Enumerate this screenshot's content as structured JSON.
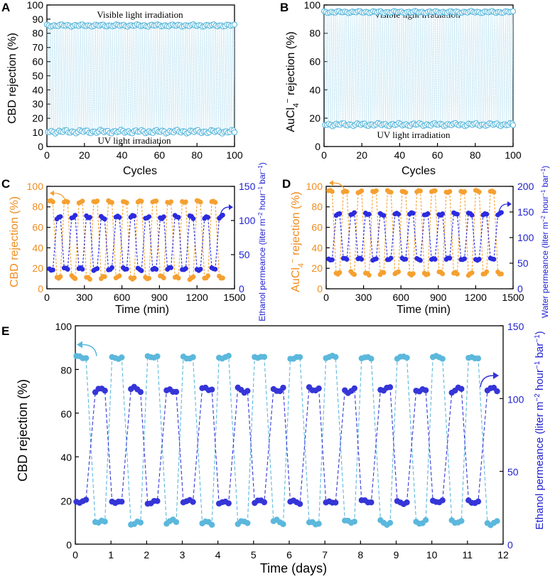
{
  "chart_data": [
    {
      "panel": "A",
      "type": "scatter",
      "xlabel": "Cycles",
      "ylabel": "CBD rejection (%)",
      "xlim": [
        0,
        100
      ],
      "ylim": [
        0,
        100
      ],
      "xticks": [
        "0",
        "20",
        "40",
        "60",
        "80",
        "100"
      ],
      "yticks": [
        "0",
        "10",
        "20",
        "30",
        "40",
        "50",
        "60",
        "70",
        "80",
        "90",
        "100"
      ],
      "annotations": [
        "Visible light irradiation",
        "UV light irradiation"
      ],
      "series": [
        {
          "label": "Visible light irradiation",
          "level": 85.5,
          "amplitude": 0.9,
          "color": "#5bb8dc"
        },
        {
          "label": "UV light irradiation",
          "level": 10.5,
          "amplitude": 1.4,
          "color": "#5bb8dc"
        }
      ],
      "grid": false
    },
    {
      "panel": "B",
      "type": "scatter",
      "xlabel": "Cycles",
      "ylabel_parts": [
        "AuCl",
        "4",
        "−",
        " rejection (%)"
      ],
      "xlim": [
        0,
        100
      ],
      "ylim": [
        0,
        100
      ],
      "xticks": [
        "0",
        "20",
        "40",
        "60",
        "80",
        "100"
      ],
      "yticks": [
        "0",
        "20",
        "40",
        "60",
        "80",
        "100"
      ],
      "annotations": [
        "Visible light irradiation",
        "UV light irradiation"
      ],
      "series": [
        {
          "label": "Visible light irradiation",
          "level": 95,
          "amplitude": 0.8,
          "color": "#5bb8dc"
        },
        {
          "label": "UV light irradiation",
          "level": 15.5,
          "amplitude": 1.2,
          "color": "#5bb8dc"
        }
      ],
      "grid": false
    },
    {
      "panel": "C",
      "type": "line",
      "xlabel": "Time (min)",
      "ylabel": "CBD rejection (%)",
      "ylabel_right": "Ethanol permeance (liter m",
      "xlim": [
        0,
        1500
      ],
      "ylim": [
        0,
        100
      ],
      "ylim_right": [
        0,
        150
      ],
      "xticks": [
        "0",
        "300",
        "600",
        "900",
        "1200",
        "1500"
      ],
      "yticks": [
        "0",
        "20",
        "40",
        "60",
        "80",
        "100"
      ],
      "yticks_right": [
        "0",
        "50",
        "100",
        "150"
      ],
      "cycles": 12,
      "cycle_minutes": 115,
      "series": [
        {
          "name": "rejection",
          "axis": "left",
          "high": 85,
          "low": 11,
          "color": "#f5a030"
        },
        {
          "name": "permeance",
          "axis": "right",
          "high": 105,
          "low": 29,
          "color": "#2b2be0"
        }
      ],
      "grid": false
    },
    {
      "panel": "D",
      "type": "line",
      "xlabel": "Time (min)",
      "ylabel_parts": [
        "AuCl",
        "4",
        "−",
        " rejection (%)"
      ],
      "ylabel_right": "Water permeance (liter m",
      "xlim": [
        0,
        1500
      ],
      "ylim": [
        0,
        100
      ],
      "ylim_right": [
        0,
        200
      ],
      "xticks": [
        "0",
        "300",
        "600",
        "900",
        "1200",
        "1500"
      ],
      "yticks": [
        "0",
        "20",
        "40",
        "60",
        "80",
        "100"
      ],
      "yticks_right": [
        "0",
        "50",
        "100",
        "150",
        "200"
      ],
      "cycles": 12,
      "cycle_minutes": 115,
      "series": [
        {
          "name": "rejection",
          "axis": "left",
          "high": 95,
          "low": 15,
          "color": "#f5a030"
        },
        {
          "name": "permeance",
          "axis": "right",
          "high": 146,
          "low": 58,
          "color": "#2b2be0"
        }
      ],
      "grid": false
    },
    {
      "panel": "E",
      "type": "line",
      "xlabel": "Time (days)",
      "ylabel": "CBD rejection (%)",
      "ylabel_right": "Ethanol permeance (liter m",
      "xlim": [
        0,
        12
      ],
      "ylim": [
        0,
        100
      ],
      "ylim_right": [
        0,
        150
      ],
      "xticks": [
        "0",
        "1",
        "2",
        "3",
        "4",
        "5",
        "6",
        "7",
        "8",
        "9",
        "10",
        "11",
        "12"
      ],
      "yticks": [
        "0",
        "20",
        "40",
        "60",
        "80",
        "100"
      ],
      "yticks_right": [
        "0",
        "50",
        "100",
        "150"
      ],
      "cycles": 12,
      "cycle_days": 1,
      "series": [
        {
          "name": "rejection",
          "axis": "left",
          "high": 85.5,
          "low": 10,
          "color": "#5bb8dc"
        },
        {
          "name": "permeance",
          "axis": "right",
          "high": 106,
          "low": 29,
          "color": "#3535d8"
        }
      ],
      "grid": false
    }
  ],
  "unit_suffix": {
    "m_exp": "−2",
    "mid": " hour",
    "h_exp": "−1",
    "bar": " bar",
    "b_exp": "−1",
    "close": ")"
  }
}
